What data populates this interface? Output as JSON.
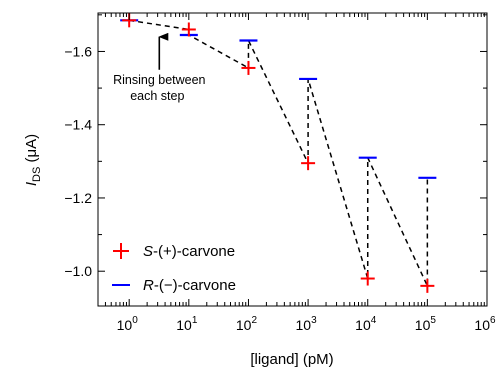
{
  "chart_data": {
    "type": "scatter",
    "xscale": "log",
    "xlabel": "[ligand] (pM)",
    "ylabel": "I_DS (μA)",
    "ylabel_main": "I",
    "ylabel_sub": "DS",
    "ylabel_unit": " (μA)",
    "xlim": [
      0.3,
      1000000
    ],
    "ylim": [
      -1.705,
      -0.905
    ],
    "x_ticks": [
      {
        "value": 1,
        "base": "10",
        "exp": "0"
      },
      {
        "value": 10,
        "base": "10",
        "exp": "1"
      },
      {
        "value": 100,
        "base": "10",
        "exp": "2"
      },
      {
        "value": 1000,
        "base": "10",
        "exp": "3"
      },
      {
        "value": 10000,
        "base": "10",
        "exp": "4"
      },
      {
        "value": 100000,
        "base": "10",
        "exp": "5"
      },
      {
        "value": 1000000,
        "base": "10",
        "exp": "6"
      }
    ],
    "y_ticks": [
      {
        "value": -1.6,
        "label": "−1.6"
      },
      {
        "value": -1.4,
        "label": "−1.4"
      },
      {
        "value": -1.2,
        "label": "−1.2"
      },
      {
        "value": -1.0,
        "label": "−1.0"
      }
    ],
    "series": [
      {
        "name": "S-(+)-carvone",
        "name_italic": "S",
        "name_rest": "-(+)-carvone",
        "marker": "plus",
        "color": "#ff0000",
        "x": [
          1,
          10,
          100,
          1000,
          10000,
          100000
        ],
        "y": [
          -1.685,
          -1.66,
          -1.555,
          -1.295,
          -0.98,
          -0.96
        ]
      },
      {
        "name": "R-(−)-carvone",
        "name_italic": "R",
        "name_rest": "-(−)-carvone",
        "marker": "hline",
        "color": "#0000ff",
        "x": [
          1,
          10,
          100,
          1000,
          10000,
          100000
        ],
        "y": [
          -1.685,
          -1.645,
          -1.63,
          -1.525,
          -1.31,
          -1.255
        ]
      }
    ],
    "connector_order": [
      [
        "S",
        0
      ],
      [
        "R",
        0
      ],
      [
        "S",
        1
      ],
      [
        "R",
        1
      ],
      [
        "S",
        2
      ],
      [
        "R",
        2
      ],
      [
        "S",
        3
      ],
      [
        "R",
        3
      ],
      [
        "S",
        4
      ],
      [
        "R",
        4
      ],
      [
        "S",
        5
      ],
      [
        "R",
        5
      ]
    ],
    "annotation": {
      "lines": [
        "Rinsing between",
        "each step"
      ],
      "arrow_target_x": 3.2,
      "arrow_target_y": -1.64,
      "arrow_base_y": -1.55
    },
    "legend": {
      "position": "bottom-left"
    },
    "grid": false
  }
}
